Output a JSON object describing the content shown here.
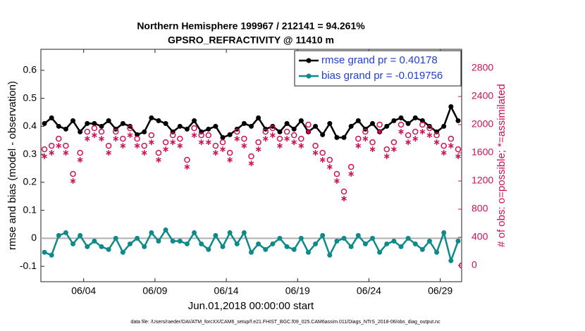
{
  "chart_data": {
    "type": "line",
    "title": "Northern Hemisphere 199967 / 212141 = 94.261%",
    "subtitle": "GPSRO_REFRACTIVITY @ 11410 m",
    "x_label": "Jun.01,2018 00:00:00 start",
    "y_label": "rmse and bias (model - observation)",
    "y2_label": "# of obs: o=possible; *=assimilated",
    "footnote": "data file: /Users/raeder/DAI/ATM_forcXX/CAM6_setup/f.e21.FHIST_BGC.f09_025.CAM6assim.011/Diags_NTrS_2018-06/obs_diag_output.nc",
    "x": [
      0.25,
      0.75,
      1.25,
      1.75,
      2.25,
      2.75,
      3.25,
      3.75,
      4.25,
      4.75,
      5.25,
      5.75,
      6.25,
      6.75,
      7.25,
      7.75,
      8.25,
      8.75,
      9.25,
      9.75,
      10.25,
      10.75,
      11.25,
      11.75,
      12.25,
      12.75,
      13.25,
      13.75,
      14.25,
      14.75,
      15.25,
      15.75,
      16.25,
      16.75,
      17.25,
      17.75,
      18.25,
      18.75,
      19.25,
      19.75,
      20.25,
      20.75,
      21.25,
      21.75,
      22.25,
      22.75,
      23.25,
      23.75,
      24.25,
      24.75,
      25.25,
      25.75,
      26.25,
      26.75,
      27.25,
      27.75,
      28.25,
      28.75,
      29.25,
      29.5
    ],
    "xlim": [
      0,
      29.5
    ],
    "xticks": [
      {
        "value": 3,
        "label": "06/04"
      },
      {
        "value": 8,
        "label": "06/09"
      },
      {
        "value": 13,
        "label": "06/14"
      },
      {
        "value": 18,
        "label": "06/19"
      },
      {
        "value": 23,
        "label": "06/24"
      },
      {
        "value": 28,
        "label": "06/29"
      }
    ],
    "ylim": [
      -0.155,
      0.675
    ],
    "yticks": [
      -0.1,
      0,
      0.1,
      0.2,
      0.3,
      0.4,
      0.5,
      0.6
    ],
    "y2lim": [
      -230,
      3070
    ],
    "y2ticks": [
      0,
      400,
      800,
      1200,
      1600,
      2000,
      2400,
      2800
    ],
    "reference_line": 0,
    "legend": "upper right",
    "series": [
      {
        "name": "rmse grand pr = 0.40178",
        "color": "#000000",
        "marker": "dot",
        "line": true,
        "values": [
          0.41,
          0.43,
          0.4,
          0.39,
          0.42,
          0.38,
          0.41,
          0.41,
          0.4,
          0.42,
          0.39,
          0.41,
          0.4,
          0.37,
          0.38,
          0.43,
          0.42,
          0.41,
          0.38,
          0.4,
          0.39,
          0.42,
          0.38,
          0.39,
          0.4,
          0.36,
          0.37,
          0.39,
          0.41,
          0.4,
          0.43,
          0.39,
          0.4,
          0.38,
          0.41,
          0.39,
          0.42,
          0.38,
          0.4,
          0.37,
          0.41,
          0.36,
          0.36,
          0.4,
          0.42,
          0.39,
          0.41,
          0.38,
          0.4,
          0.42,
          0.43,
          0.41,
          0.43,
          0.42,
          0.4,
          0.38,
          0.4,
          0.47,
          0.42,
          null
        ]
      },
      {
        "name": "bias grand pr = -0.019756",
        "color": "#0e8a8a",
        "marker": "dot",
        "line": true,
        "values": [
          -0.05,
          -0.06,
          0.01,
          0.02,
          -0.02,
          0.01,
          -0.03,
          -0.01,
          -0.03,
          -0.04,
          0.0,
          -0.05,
          -0.02,
          0.0,
          -0.03,
          0.02,
          -0.01,
          0.03,
          -0.01,
          -0.01,
          -0.02,
          0.02,
          -0.02,
          -0.04,
          0.01,
          -0.03,
          0.02,
          -0.02,
          0.02,
          -0.05,
          -0.02,
          -0.04,
          -0.02,
          0.0,
          -0.03,
          -0.04,
          0.0,
          -0.05,
          -0.02,
          0.01,
          -0.06,
          -0.01,
          0.0,
          -0.03,
          0.01,
          -0.02,
          0.0,
          -0.05,
          -0.02,
          -0.01,
          -0.03,
          0.0,
          -0.02,
          -0.04,
          -0.01,
          -0.05,
          0.02,
          -0.08,
          -0.01,
          null
        ]
      },
      {
        "color": "#cc1155",
        "marker": "circle",
        "line": false,
        "axis": "y2",
        "values": [
          1650,
          1700,
          1800,
          1700,
          1300,
          1600,
          1900,
          1950,
          1900,
          1700,
          1900,
          1800,
          1950,
          1800,
          1700,
          1850,
          1600,
          1750,
          1850,
          1800,
          1500,
          1950,
          1850,
          1850,
          1700,
          1750,
          1600,
          1900,
          1800,
          1550,
          1750,
          1900,
          1950,
          1800,
          1900,
          1850,
          1800,
          2000,
          1700,
          1600,
          1500,
          1300,
          1050,
          1400,
          1800,
          1900,
          1750,
          2000,
          1650,
          1750,
          2000,
          1850,
          1900,
          2000,
          1950,
          1850,
          1700,
          1800,
          1650,
          0
        ]
      },
      {
        "color": "#cc1155",
        "marker": "asterisk",
        "line": false,
        "axis": "y2",
        "values": [
          1550,
          1600,
          1700,
          1600,
          1200,
          1500,
          1800,
          1850,
          1800,
          1600,
          1800,
          1700,
          1850,
          1700,
          1600,
          1750,
          1500,
          1650,
          1750,
          1700,
          1400,
          1850,
          1750,
          1750,
          1600,
          1650,
          1500,
          1800,
          1700,
          1450,
          1650,
          1800,
          1850,
          1700,
          1800,
          1750,
          1700,
          1900,
          1600,
          1500,
          1400,
          1200,
          950,
          1300,
          1700,
          1800,
          1650,
          1900,
          1550,
          1650,
          1900,
          1750,
          1800,
          1900,
          1850,
          1750,
          1600,
          1700,
          1550,
          null
        ]
      }
    ]
  }
}
